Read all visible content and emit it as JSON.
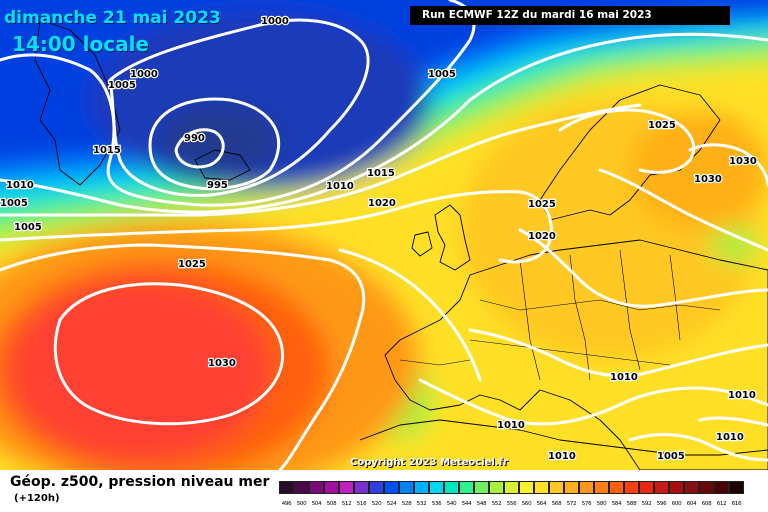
{
  "title": {
    "date": "dimanche 21 mai 2023",
    "time": "14:00 locale"
  },
  "run_info": "Run ECMWF 12Z du mardi 16 mai 2023",
  "copyright": "Copyright 2023 Meteociel.fr",
  "parameter": {
    "title": "Géop. z500, pression niveau mer",
    "subtitle": "(+120h)"
  },
  "legend": {
    "labels": [
      "496",
      "500",
      "504",
      "508",
      "512",
      "516",
      "520",
      "524",
      "528",
      "532",
      "536",
      "540",
      "544",
      "548",
      "552",
      "556",
      "560",
      "564",
      "568",
      "572",
      "576",
      "580",
      "584",
      "588",
      "592",
      "596",
      "600",
      "604",
      "608",
      "612",
      "616"
    ],
    "colors": [
      "#2a0a2a",
      "#4a0a4a",
      "#7a0a7a",
      "#a010a0",
      "#c020c0",
      "#7a30d0",
      "#3040e0",
      "#0050ff",
      "#0080ff",
      "#00b0ff",
      "#00d8f0",
      "#00e8c0",
      "#30f090",
      "#70f060",
      "#a8f040",
      "#d8f030",
      "#f8f030",
      "#ffe028",
      "#ffc820",
      "#ffb018",
      "#ff9818",
      "#ff8010",
      "#ff6010",
      "#ff4010",
      "#e82810",
      "#c81818",
      "#a81010",
      "#881010",
      "#680808",
      "#480404",
      "#200000"
    ]
  },
  "pressure_labels": [
    "1000",
    "1005",
    "1010",
    "1015",
    "1020",
    "1025",
    "1030",
    "990",
    "995"
  ],
  "colors": {
    "deep_blue": "#0a2aa8",
    "ocean_green": "#30f090",
    "anticyclone_red": "#ff4030",
    "isobar": "#ffffff"
  }
}
